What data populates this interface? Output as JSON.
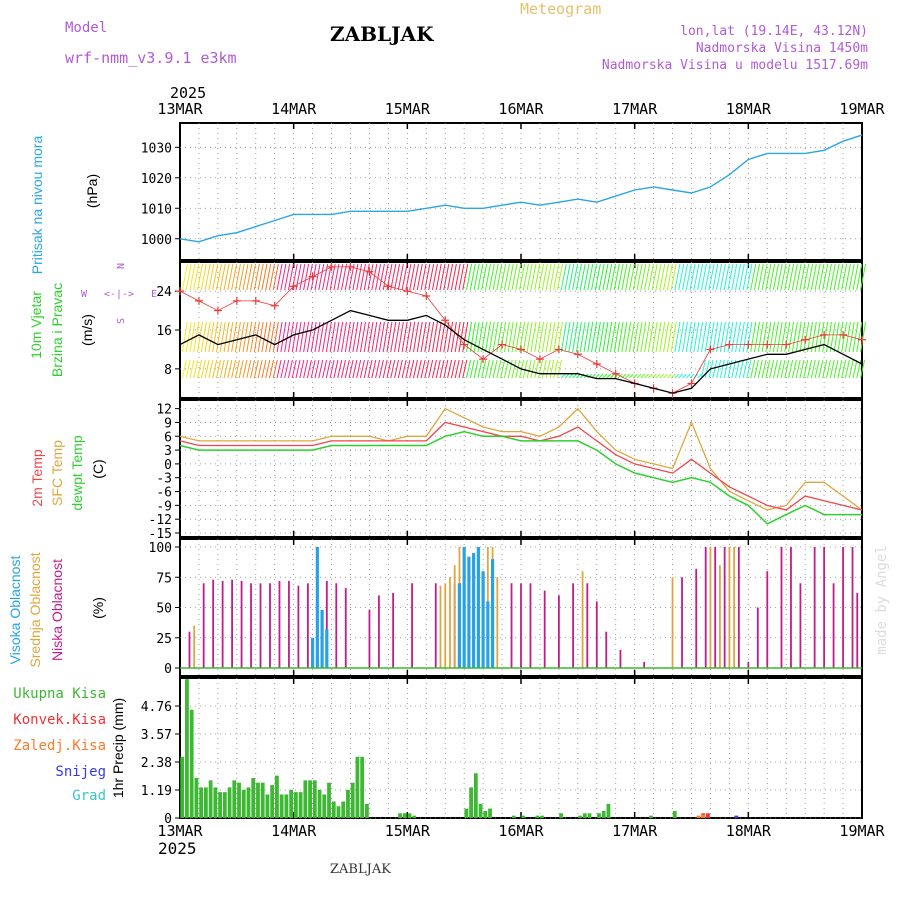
{
  "header": {
    "model_label": "Model",
    "model_name": "wrf-nmm_v3.9.1 e3km",
    "station": "ZABLJAK",
    "meteogram": "Meteogram",
    "coords": "lon,lat (19.14E, 43.12N)",
    "altitude": "Nadmorska Visina 1450m",
    "model_altitude": "Nadmorska Visina u modelu 1517.69m",
    "year_top": "2025",
    "year_bottom": "2025",
    "footer_station": "ZABLJAK",
    "watermark": "made by Angel"
  },
  "colors": {
    "pressure": "#2aa6e6",
    "wind_speed": "#000000",
    "gust": "#e83c3c",
    "temp2m": "#f0464a",
    "sfc": "#dfa640",
    "dew": "#2ed02e",
    "high_cloud": "#28a2e6",
    "mid_cloud": "#dfa640",
    "low_cloud": "#c21c8a",
    "rain": "#3cb832",
    "conv": "#ee3333",
    "freezing": "#ff7a2a",
    "snow": "#3a3ae6",
    "hail": "#37c5c5"
  },
  "chart_data": [
    {
      "type": "line",
      "title": "Pritisak na nivou mora",
      "ylabel": "(hPa)",
      "ylim": [
        995,
        1036
      ],
      "yticks": [
        "1000",
        "1010",
        "1020",
        "1030"
      ],
      "x_labels": [
        "13MAR",
        "14MAR",
        "15MAR",
        "16MAR",
        "17MAR",
        "18MAR",
        "19MAR"
      ],
      "x_hours": [
        0,
        4,
        8,
        12,
        16,
        20,
        24,
        28,
        32,
        36,
        40,
        44,
        48,
        52,
        56,
        60,
        64,
        68,
        72,
        76,
        80,
        84,
        88,
        92,
        96,
        100,
        104,
        108,
        112,
        116,
        120,
        124,
        128,
        132,
        136,
        140,
        144
      ],
      "series": [
        {
          "name": "MSLP",
          "values": [
            1000,
            999,
            1001,
            1002,
            1004,
            1006,
            1008,
            1008,
            1008,
            1009,
            1009,
            1009,
            1009,
            1010,
            1011,
            1010,
            1010,
            1011,
            1012,
            1011,
            1012,
            1013,
            1012,
            1014,
            1016,
            1017,
            1016,
            1015,
            1017,
            1021,
            1026,
            1028,
            1028,
            1028,
            1029,
            1032,
            1034
          ]
        }
      ]
    },
    {
      "type": "line",
      "title": "10m Vjetar Brzina i Pravac",
      "ylabel": "(m/s)",
      "ylim": [
        2,
        30
      ],
      "yticks": [
        "8",
        "16",
        "24"
      ],
      "compass": [
        "N",
        "W",
        "E",
        "S"
      ],
      "x_hours": [
        0,
        4,
        8,
        12,
        16,
        20,
        24,
        28,
        32,
        36,
        40,
        44,
        48,
        52,
        56,
        60,
        64,
        68,
        72,
        76,
        80,
        84,
        88,
        92,
        96,
        100,
        104,
        108,
        112,
        116,
        120,
        124,
        128,
        132,
        136,
        140,
        144
      ],
      "series": [
        {
          "name": "wind speed",
          "values": [
            13,
            15,
            13,
            14,
            15,
            13,
            15,
            16,
            18,
            20,
            19,
            18,
            18,
            19,
            17,
            14,
            12,
            10,
            8,
            7,
            7,
            7,
            6,
            6,
            5,
            4,
            3,
            4,
            8,
            9,
            10,
            11,
            11,
            12,
            13,
            11,
            9
          ]
        },
        {
          "name": "gust",
          "values": [
            24,
            22,
            20,
            22,
            22,
            21,
            25,
            27,
            29,
            29,
            28,
            25,
            24,
            23,
            18,
            13,
            10,
            13,
            12,
            10,
            12,
            11,
            9,
            7,
            5,
            4,
            3,
            5,
            12,
            13,
            13,
            13,
            13,
            14,
            15,
            15,
            14
          ]
        }
      ]
    },
    {
      "type": "line",
      "title": "2m Temp / SFC Temp / dewpt Temp",
      "ylabel": "(C)",
      "ylim": [
        -15,
        13
      ],
      "yticks": [
        "-15",
        "-12",
        "-9",
        "-6",
        "-3",
        "0",
        "3",
        "6",
        "9",
        "12"
      ],
      "x_hours": [
        0,
        4,
        8,
        12,
        16,
        20,
        24,
        28,
        32,
        36,
        40,
        44,
        48,
        52,
        56,
        60,
        64,
        68,
        72,
        76,
        80,
        84,
        88,
        92,
        96,
        100,
        104,
        108,
        112,
        116,
        120,
        124,
        128,
        132,
        136,
        140,
        144
      ],
      "series": [
        {
          "name": "2m Temp",
          "values": [
            5,
            4,
            4,
            4,
            4,
            4,
            4,
            4,
            5,
            5,
            5,
            5,
            5,
            5,
            9,
            8,
            7,
            6,
            6,
            5,
            6,
            8,
            5,
            2,
            0,
            -1,
            -2,
            1,
            -2,
            -5,
            -7,
            -9,
            -10,
            -7,
            -8,
            -9,
            -10
          ]
        },
        {
          "name": "SFC Temp",
          "values": [
            6,
            5,
            5,
            5,
            5,
            5,
            5,
            5,
            6,
            6,
            6,
            5,
            6,
            6,
            12,
            10,
            8,
            7,
            7,
            6,
            8,
            12,
            7,
            3,
            1,
            0,
            -1,
            9,
            -1,
            -6,
            -8,
            -10,
            -9,
            -4,
            -4,
            -7,
            -10
          ]
        },
        {
          "name": "dewpt Temp",
          "values": [
            4,
            3,
            3,
            3,
            3,
            3,
            3,
            3,
            4,
            4,
            4,
            4,
            4,
            4,
            6,
            7,
            6,
            6,
            5,
            5,
            5,
            5,
            3,
            0,
            -2,
            -3,
            -4,
            -3,
            -4,
            -7,
            -9,
            -13,
            -11,
            -9,
            -11,
            -11,
            -11
          ]
        }
      ]
    },
    {
      "type": "bar",
      "title": "Visoka Oblacnost / Srednja Oblacnost / Niska Oblacnost",
      "ylabel": "(%)",
      "ylim": [
        0,
        100
      ],
      "yticks": [
        "0",
        "25",
        "50",
        "75",
        "100"
      ],
      "series": [
        {
          "name": "Niska Oblacnost",
          "hours": [
            2,
            5,
            7,
            9,
            11,
            13,
            15,
            17,
            19,
            21,
            23,
            25,
            27,
            31,
            33,
            35,
            40,
            42,
            45,
            49,
            54,
            58,
            62,
            66,
            70,
            72,
            74,
            77,
            80,
            83,
            86,
            88,
            90,
            93,
            98,
            106,
            109,
            111,
            113,
            115,
            118,
            120,
            122,
            124,
            127,
            129,
            131,
            134,
            136,
            138,
            140,
            142,
            143
          ],
          "values": [
            30,
            70,
            73,
            72,
            73,
            72,
            70,
            70,
            70,
            72,
            72,
            68,
            70,
            72,
            70,
            66,
            48,
            60,
            62,
            70,
            70,
            70,
            70,
            70,
            70,
            70,
            70,
            64,
            60,
            70,
            70,
            55,
            30,
            15,
            5,
            75,
            82,
            100,
            100,
            100,
            100,
            5,
            50,
            80,
            100,
            100,
            70,
            100,
            100,
            70,
            100,
            100,
            62
          ]
        },
        {
          "name": "Srednja Oblacnost",
          "hours": [
            3,
            55,
            56,
            57,
            58,
            59,
            60,
            61,
            62,
            63,
            64,
            65,
            66,
            67,
            85,
            104,
            112,
            114,
            116,
            117
          ],
          "values": [
            35,
            68,
            70,
            75,
            85,
            100,
            90,
            80,
            70,
            100,
            75,
            100,
            100,
            75,
            80,
            75,
            100,
            85,
            100,
            100
          ]
        },
        {
          "name": "Visoka Oblacnost",
          "hours": [
            28,
            29,
            30,
            31,
            59,
            60,
            61,
            62,
            63,
            64,
            65,
            66
          ],
          "values": [
            25,
            100,
            48,
            32,
            70,
            100,
            92,
            95,
            100,
            80,
            55,
            90
          ]
        }
      ]
    },
    {
      "type": "bar",
      "title": "Ukupna Kisa / Konvek.Kisa / Zaledj.Kisa / Snijeg / Grad",
      "ylabel": "1hr Precip (mm)",
      "ylim": [
        0,
        5.95
      ],
      "yticks": [
        "0",
        "1.19",
        "2.38",
        "3.57",
        "4.76"
      ],
      "legend": [
        "Ukupna Kisa",
        "Konvek.Kisa",
        "Zaledj.Kisa",
        "Snijeg",
        "Grad"
      ],
      "x_labels": [
        "13MAR",
        "14MAR",
        "15MAR",
        "16MAR",
        "17MAR",
        "18MAR",
        "19MAR"
      ],
      "series": [
        {
          "name": "Ukupna Kisa",
          "hours": [
            0,
            1,
            2,
            3,
            4,
            5,
            6,
            7,
            8,
            9,
            10,
            11,
            12,
            13,
            14,
            15,
            16,
            17,
            18,
            19,
            20,
            21,
            22,
            23,
            24,
            25,
            26,
            27,
            28,
            29,
            30,
            31,
            32,
            33,
            34,
            35,
            36,
            37,
            38,
            39,
            46,
            47,
            48,
            49,
            60,
            61,
            62,
            63,
            64,
            65,
            70,
            72,
            75,
            76,
            80,
            84,
            85,
            86,
            88,
            89,
            90,
            99,
            104
          ],
          "values": [
            2.6,
            5.9,
            4.6,
            1.7,
            1.3,
            1.3,
            1.6,
            1.3,
            1.1,
            1.1,
            1.3,
            1.6,
            1.5,
            1.2,
            1.3,
            1.7,
            1.5,
            1.5,
            1.0,
            1.4,
            1.8,
            1.0,
            1.0,
            1.2,
            1.1,
            1.1,
            1.6,
            1.6,
            1.6,
            1.2,
            1.0,
            1.5,
            0.7,
            0.5,
            0.7,
            1.2,
            1.5,
            2.6,
            2.6,
            0.6,
            0.2,
            0.2,
            0.2,
            0.1,
            0.4,
            1.3,
            1.9,
            0.6,
            0.3,
            0.4,
            0.1,
            0.1,
            0.1,
            0.1,
            0.2,
            0.1,
            0.2,
            0.2,
            0.2,
            0.3,
            0.6,
            0.1,
            0.3
          ]
        },
        {
          "name": "Konvek.Kisa",
          "hours": [
            110,
            111
          ],
          "values": [
            0.2,
            0.2
          ]
        },
        {
          "name": "Zaledj.Kisa",
          "hours": [
            109,
            110
          ],
          "values": [
            0.1,
            0.15
          ]
        },
        {
          "name": "Snijeg",
          "hours": [
            117
          ],
          "values": [
            0.1
          ]
        }
      ]
    }
  ]
}
